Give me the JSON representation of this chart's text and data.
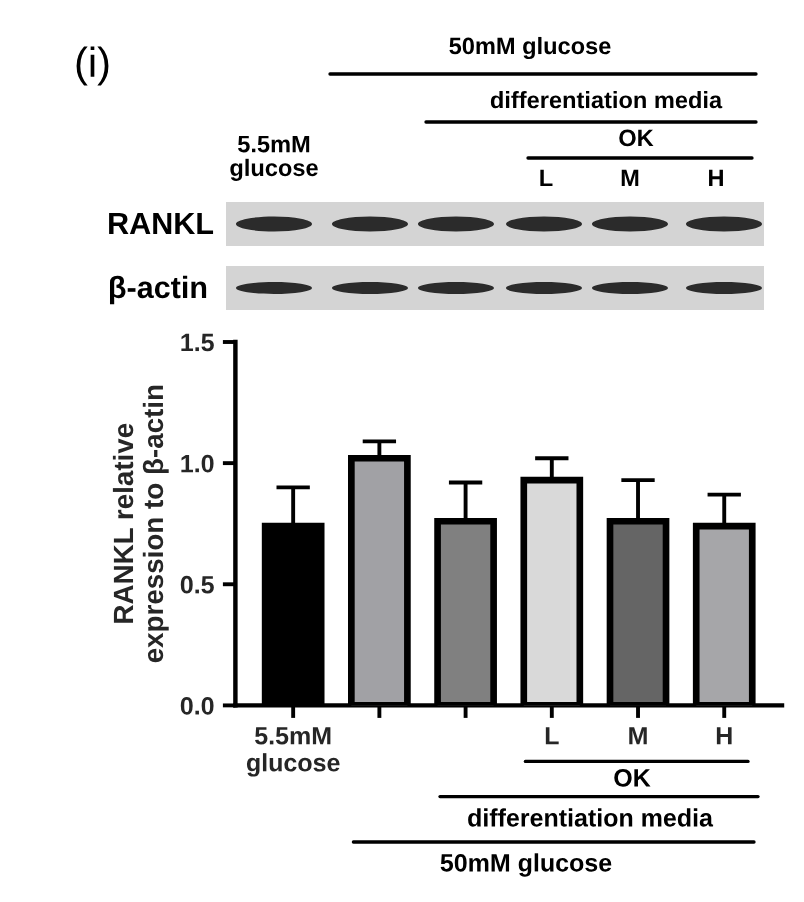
{
  "chart_data": {
    "type": "bar",
    "annotations": [
      "(i)",
      "50mM glucose",
      "differentiation media",
      "OK",
      "5.5mM\nglucose",
      "L",
      "M",
      "H",
      "RANKL",
      "β-actin",
      "OK",
      "differentiation media",
      "50mM glucose"
    ],
    "ylabel": "RANKL relative\nexpression to β-actin",
    "categories": [
      "5.5mM\nglucose",
      null,
      null,
      "L",
      "M",
      "H"
    ],
    "values": [
      0.74,
      1.02,
      0.76,
      0.93,
      0.76,
      0.74
    ],
    "colors": [
      "#000000",
      "#a1a1a5",
      "#808080",
      "#d9d9d9",
      "#656565",
      "#a6a6a9"
    ],
    "errors": [
      [
        0.74,
        0.9
      ],
      [
        1.02,
        1.09
      ],
      [
        0.76,
        0.92
      ],
      [
        0.93,
        1.02
      ],
      [
        0.76,
        0.93
      ],
      [
        0.74,
        0.87
      ]
    ],
    "ylim": [
      0,
      1.5
    ],
    "yticks": [
      {
        "value": 0,
        "label": "0.0"
      },
      {
        "value": 0.5,
        "label": "0.5"
      },
      {
        "value": 1,
        "label": "1.0"
      },
      {
        "value": 1.5,
        "label": "1.5"
      }
    ],
    "grid": false
  }
}
